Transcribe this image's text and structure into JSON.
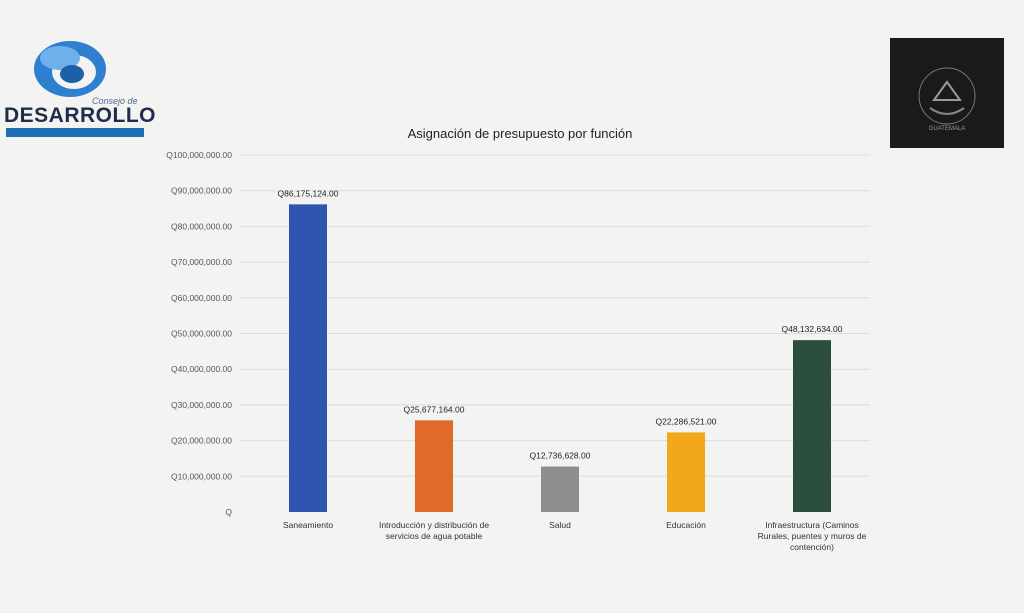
{
  "header": {
    "org_logo_text": "DESARROLLO",
    "org_logo_subtext": "Consejo de",
    "seal_text": "GUATEMALA"
  },
  "chart_data": {
    "type": "bar",
    "title": "Asignación de presupuesto por función",
    "xlabel": "",
    "ylabel": "",
    "ylim": [
      0,
      100000000
    ],
    "yticks": [
      "Q",
      "Q10,000,000.00",
      "Q20,000,000.00",
      "Q30,000,000.00",
      "Q40,000,000.00",
      "Q50,000,000.00",
      "Q60,000,000.00",
      "Q70,000,000.00",
      "Q80,000,000.00",
      "Q90,000,000.00",
      "Q100,000,000.00"
    ],
    "categories": [
      [
        "Saneamiento"
      ],
      [
        "Introducción y distribución de",
        "servicios de agua potable"
      ],
      [
        "Salud"
      ],
      [
        "Educación"
      ],
      [
        "Infraestructura (Caminos",
        "Rurales, puentes y muros de",
        "contención)"
      ]
    ],
    "values": [
      86175124,
      25677164,
      12736628,
      22286521,
      48132634
    ],
    "data_labels": [
      "Q86,175,124.00",
      "Q25,677,164.00",
      "Q12,736,628.00",
      "Q22,286,521.00",
      "Q48,132,634.00"
    ],
    "colors": [
      "#2f55b0",
      "#e06a2a",
      "#8e8e8e",
      "#f2a81d",
      "#2c4e3d"
    ],
    "grid": true
  }
}
